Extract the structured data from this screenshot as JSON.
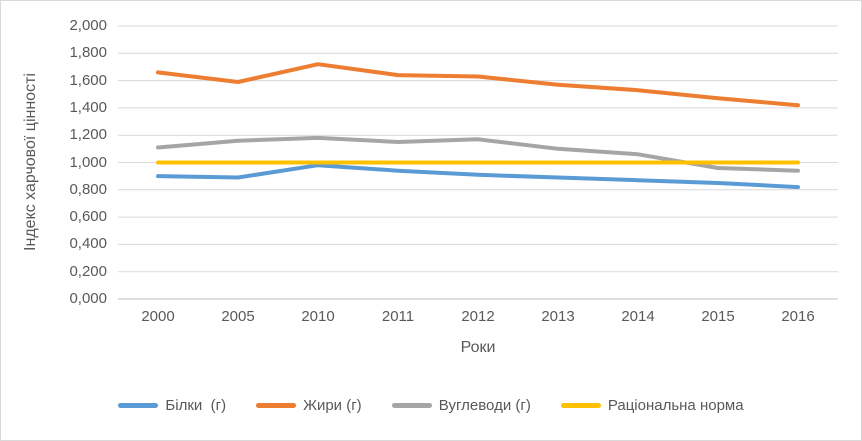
{
  "chart": {
    "background": "#FFFFFF",
    "border_color": "#D9D9D9",
    "text_color": "#595959",
    "gridline_color": "#D9D9D9",
    "axis_line_color": "#BFBFBF"
  },
  "chart_data": {
    "type": "line",
    "title": "",
    "xlabel": "Роки",
    "ylabel": "Індекс харчової цінності",
    "categories": [
      "2000",
      "2005",
      "2010",
      "2011",
      "2012",
      "2013",
      "2014",
      "2015",
      "2016"
    ],
    "series": [
      {
        "name": "Білки  (г)",
        "color": "#5B9BD5",
        "values": [
          0.9,
          0.89,
          0.98,
          0.94,
          0.91,
          0.89,
          0.87,
          0.85,
          0.82
        ]
      },
      {
        "name": "Жири (г)",
        "color": "#ED7D31",
        "values": [
          1.66,
          1.59,
          1.72,
          1.64,
          1.63,
          1.57,
          1.53,
          1.47,
          1.42
        ]
      },
      {
        "name": "Вуглеводи (г)",
        "color": "#A5A5A5",
        "values": [
          1.11,
          1.16,
          1.18,
          1.15,
          1.17,
          1.1,
          1.06,
          0.96,
          0.94
        ]
      },
      {
        "name": "Раціональна норма",
        "color": "#FFC000",
        "values": [
          1.0,
          1.0,
          1.0,
          1.0,
          1.0,
          1.0,
          1.0,
          1.0,
          1.0
        ]
      }
    ],
    "ylim": [
      0,
      2
    ],
    "y_tick_labels": [
      "2,000",
      "1,800",
      "1,600",
      "1,400",
      "1,200",
      "1,000",
      "0,800",
      "0,600",
      "0,400",
      "0,200",
      "0,000"
    ],
    "grid": "horizontal",
    "legend_position": "bottom",
    "decimal_separator": ","
  }
}
